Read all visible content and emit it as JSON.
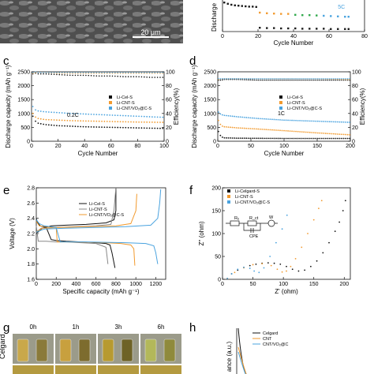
{
  "figure": {
    "panel_letters": [
      "c",
      "d",
      "e",
      "f",
      "g",
      "h"
    ],
    "sem_scale_bar": "20 μm"
  },
  "chart_data": [
    {
      "panel": "top-right (partial)",
      "type": "scatter",
      "xlabel": "Cycle Number",
      "ylabel": "Discharge",
      "xticks": [
        0,
        20,
        40,
        60,
        80
      ],
      "xlim": [
        0,
        80
      ],
      "annotations": [
        "5C"
      ],
      "series": [
        {
          "color": "#1a1a1a",
          "x": [
            1,
            3,
            5,
            7,
            9,
            11,
            13,
            15,
            17,
            19
          ],
          "y": [
            0.92,
            0.88,
            0.85,
            0.83,
            0.82,
            0.81,
            0.8,
            0.79,
            0.79,
            0.78
          ]
        },
        {
          "color": "#1a1a1a",
          "x": [
            21,
            25,
            29,
            33,
            37,
            41,
            45,
            49,
            53,
            57,
            61,
            65,
            69,
            71
          ],
          "y": [
            0.12,
            0.11,
            0.11,
            0.1,
            0.1,
            0.1,
            0.09,
            0.09,
            0.09,
            0.09,
            0.08,
            0.08,
            0.08,
            0.08
          ]
        },
        {
          "color": "#f29a2e",
          "x": [
            21,
            25,
            29,
            33,
            37
          ],
          "y": [
            0.6,
            0.58,
            0.57,
            0.56,
            0.56
          ]
        },
        {
          "color": "#2ea84a",
          "x": [
            41,
            45,
            49,
            53
          ],
          "y": [
            0.53,
            0.52,
            0.52,
            0.51
          ]
        },
        {
          "color": "#4aa3df",
          "x": [
            57,
            61,
            65,
            69,
            71
          ],
          "y": [
            0.5,
            0.49,
            0.48,
            0.47,
            0.47
          ]
        }
      ]
    },
    {
      "panel": "c",
      "type": "scatter",
      "xlabel": "Cycle Number",
      "ylabel": "Discharge capacity (mAh g⁻¹)",
      "ylabel_right": "Efficiency(%)",
      "xlim": [
        0,
        100
      ],
      "ylim": [
        0,
        2500
      ],
      "ylim_right": [
        0,
        100
      ],
      "xticks": [
        0,
        20,
        40,
        60,
        80,
        100
      ],
      "yticks": [
        0,
        500,
        1000,
        1500,
        2000,
        2500
      ],
      "yticks_right": [
        0,
        20,
        40,
        60,
        80,
        100
      ],
      "annotations": [
        "0.2C"
      ],
      "legend": [
        "Li-Cel-S",
        "Li-CNT-S",
        "Li-CNT/VO₂@C-S"
      ],
      "series": [
        {
          "name": "Li-Cel-S",
          "color": "#111111",
          "x": [
            1,
            3,
            5,
            10,
            20,
            30,
            40,
            50,
            60,
            70,
            80,
            90,
            100
          ],
          "y": [
            900,
            720,
            650,
            600,
            560,
            540,
            520,
            510,
            500,
            490,
            480,
            470,
            460
          ]
        },
        {
          "name": "Li-CNT-S",
          "color": "#f29a2e",
          "x": [
            1,
            3,
            5,
            10,
            20,
            30,
            40,
            50,
            60,
            70,
            80,
            90,
            100
          ],
          "y": [
            1000,
            870,
            820,
            780,
            760,
            740,
            730,
            720,
            710,
            700,
            690,
            685,
            680
          ]
        },
        {
          "name": "Li-CNT/VO₂@C-S",
          "color": "#4aa3df",
          "x": [
            1,
            3,
            5,
            10,
            20,
            30,
            40,
            50,
            60,
            70,
            80,
            90,
            100
          ],
          "y": [
            1250,
            1130,
            1090,
            1060,
            1030,
            1000,
            980,
            960,
            940,
            920,
            900,
            880,
            860
          ]
        }
      ],
      "efficiency": [
        {
          "color": "#111111",
          "values_pct": [
            97,
            98,
            97,
            97,
            96,
            95,
            95,
            94,
            94,
            93,
            93,
            92,
            92
          ]
        },
        {
          "color": "#f29a2e",
          "values_pct": [
            98,
            99,
            99,
            99,
            98,
            98,
            98,
            98,
            98,
            98,
            98,
            98,
            98
          ]
        },
        {
          "color": "#4aa3df",
          "values_pct": [
            99,
            100,
            99,
            99,
            99,
            99,
            99,
            99,
            99,
            99,
            99,
            99,
            99
          ]
        }
      ]
    },
    {
      "panel": "d",
      "type": "scatter",
      "xlabel": "Cycle Number",
      "ylabel": "Discharge capacity (mAh g⁻¹)",
      "ylabel_right": "Efficiency(%)",
      "xlim": [
        0,
        200
      ],
      "ylim": [
        0,
        2500
      ],
      "ylim_right": [
        0,
        100
      ],
      "xticks": [
        0,
        50,
        100,
        150,
        200
      ],
      "yticks": [
        0,
        500,
        1000,
        1500,
        2000,
        2500
      ],
      "yticks_right": [
        0,
        20,
        40,
        60,
        80,
        100
      ],
      "annotations": [
        "1C"
      ],
      "legend": [
        "Li-Cel-S",
        "Li-CNT-S",
        "Li-CNT/VO₂@C-S"
      ],
      "series": [
        {
          "name": "Li-Cel-S",
          "color": "#111111",
          "x": [
            1,
            5,
            10,
            30,
            60,
            100,
            150,
            200
          ],
          "y": [
            350,
            160,
            120,
            110,
            105,
            100,
            100,
            100
          ]
        },
        {
          "name": "Li-CNT-S",
          "color": "#f29a2e",
          "x": [
            1,
            5,
            10,
            30,
            60,
            100,
            150,
            200
          ],
          "y": [
            750,
            560,
            520,
            480,
            440,
            380,
            300,
            230
          ]
        },
        {
          "name": "Li-CNT/VO₂@C-S",
          "color": "#4aa3df",
          "x": [
            1,
            5,
            10,
            30,
            60,
            100,
            150,
            200
          ],
          "y": [
            1050,
            960,
            930,
            880,
            820,
            760,
            720,
            680
          ]
        }
      ],
      "efficiency": [
        {
          "color": "#111111",
          "values_pct": [
            88,
            88,
            89,
            89,
            88,
            88,
            88,
            88
          ]
        },
        {
          "color": "#f29a2e",
          "values_pct": [
            89,
            90,
            90,
            90,
            90,
            90,
            90,
            89
          ]
        },
        {
          "color": "#4aa3df",
          "values_pct": [
            90,
            90,
            90,
            90,
            90,
            90,
            90,
            90
          ]
        }
      ]
    },
    {
      "panel": "e",
      "type": "line",
      "xlabel": "Specific capacity (mAh g⁻¹)",
      "ylabel": "Voltage (V)",
      "xlim": [
        0,
        1300
      ],
      "ylim": [
        1.6,
        2.8
      ],
      "xticks": [
        0,
        200,
        400,
        600,
        800,
        1000,
        1200
      ],
      "yticks": [
        1.6,
        1.8,
        2.0,
        2.2,
        2.4,
        2.6,
        2.8
      ],
      "legend": [
        "Li-Cel-S",
        "Li-CNT-S",
        "Li-CNT/VO₂@C-S"
      ],
      "series": [
        {
          "name": "Li-Cel-S",
          "color": "#111111",
          "charge": {
            "x": [
              0,
              60,
              150,
              300,
              500,
              700,
              780,
              800,
              800
            ],
            "y": [
              2.2,
              2.27,
              2.3,
              2.31,
              2.32,
              2.34,
              2.38,
              2.5,
              2.8
            ]
          },
          "discharge": {
            "x": [
              0,
              10,
              40,
              100,
              150,
              200,
              300,
              450,
              600,
              700,
              740,
              760,
              790
            ],
            "y": [
              2.4,
              2.35,
              2.3,
              2.28,
              2.12,
              2.11,
              2.1,
              2.09,
              2.08,
              2.07,
              2.05,
              1.95,
              1.75
            ]
          }
        },
        {
          "name": "Li-CNT-S",
          "color": "#888888",
          "charge": {
            "x": [
              0,
              50,
              200,
              400,
              600,
              750,
              780,
              800
            ],
            "y": [
              2.22,
              2.27,
              2.28,
              2.29,
              2.3,
              2.32,
              2.5,
              2.8
            ]
          },
          "discharge": {
            "x": [
              0,
              20,
              100,
              200,
              300,
              450,
              600,
              700,
              720
            ],
            "y": [
              2.3,
              2.1,
              2.1,
              2.09,
              2.09,
              2.08,
              2.07,
              2.02,
              1.8
            ]
          }
        },
        {
          "name": "Li-CNT/VO₂@C-S",
          "color": "#f29a2e",
          "charge": {
            "x": [
              0,
              60,
              250,
              500,
              800,
              950,
              1000,
              1010
            ],
            "y": [
              2.22,
              2.27,
              2.28,
              2.29,
              2.3,
              2.33,
              2.5,
              2.72
            ]
          },
          "discharge": {
            "x": [
              0,
              30,
              200,
              210,
              400,
              700,
              850,
              950,
              980,
              990
            ],
            "y": [
              2.36,
              2.3,
              2.28,
              2.09,
              2.09,
              2.08,
              2.07,
              2.05,
              2.0,
              1.78
            ]
          }
        },
        {
          "name": "",
          "color": "#4aa3df",
          "charge": {
            "x": [
              0,
              80,
              300,
              600,
              900,
              1150,
              1220,
              1240,
              1250
            ],
            "y": [
              2.22,
              2.26,
              2.27,
              2.28,
              2.29,
              2.31,
              2.4,
              2.6,
              2.78
            ]
          },
          "discharge": {
            "x": [
              0,
              30,
              80,
              200,
              240,
              500,
              900,
              1100,
              1180,
              1200,
              1220
            ],
            "y": [
              2.38,
              2.33,
              2.3,
              2.28,
              2.09,
              2.09,
              2.08,
              2.07,
              2.04,
              1.95,
              1.8
            ]
          }
        }
      ]
    },
    {
      "panel": "f",
      "type": "scatter",
      "xlabel": "Z' (ohm)",
      "ylabel": "Z'' (ohm)",
      "xlim": [
        0,
        210
      ],
      "ylim": [
        0,
        200
      ],
      "xticks": [
        0,
        50,
        100,
        150,
        200
      ],
      "yticks": [
        0,
        50,
        100,
        150,
        200
      ],
      "legend": [
        "Li-Celgard-S",
        "Li-CNT-S",
        "Li-CNT/VO₂@C-S"
      ],
      "circuit_labels": [
        "Rₑ",
        "R_ct",
        "CPE",
        "W"
      ],
      "series": [
        {
          "name": "Li-Celgard-S",
          "color": "#111111",
          "x": [
            8,
            15,
            25,
            35,
            45,
            55,
            65,
            75,
            85,
            95,
            105,
            115,
            125,
            135,
            145,
            155,
            165,
            175,
            185,
            192,
            198,
            202
          ],
          "y": [
            2,
            12,
            20,
            26,
            30,
            33,
            35,
            36,
            35,
            33,
            28,
            22,
            18,
            20,
            28,
            40,
            58,
            80,
            105,
            125,
            150,
            172
          ]
        },
        {
          "name": "Li-CNT-S",
          "color": "#f29a2e",
          "x": [
            8,
            20,
            35,
            50,
            65,
            80,
            90,
            98,
            105,
            112,
            120,
            130,
            140,
            150,
            158,
            163
          ],
          "y": [
            2,
            15,
            25,
            32,
            34,
            30,
            22,
            16,
            18,
            28,
            45,
            70,
            100,
            130,
            155,
            172
          ]
        },
        {
          "name": "Li-CNT/VO₂@C-S",
          "color": "#4aa3df",
          "x": [
            8,
            15,
            25,
            35,
            45,
            52,
            60,
            68,
            78,
            88,
            98,
            106
          ],
          "y": [
            2,
            12,
            22,
            26,
            24,
            18,
            15,
            25,
            50,
            80,
            110,
            140
          ]
        }
      ]
    },
    {
      "panel": "g",
      "type": "other",
      "time_labels": [
        "0h",
        "1h",
        "3h",
        "6h"
      ],
      "row_labels": [
        "Celgard"
      ]
    },
    {
      "panel": "h",
      "type": "line",
      "ylabel": "ance (a.u.)",
      "legend": [
        "Celgard",
        "CNT",
        "CNT/VO₂@C"
      ],
      "series": [
        {
          "name": "Celgard",
          "color": "#111111"
        },
        {
          "name": "CNT",
          "color": "#f29a2e"
        },
        {
          "name": "CNT/VO₂@C",
          "color": "#4aa3df"
        }
      ]
    }
  ]
}
